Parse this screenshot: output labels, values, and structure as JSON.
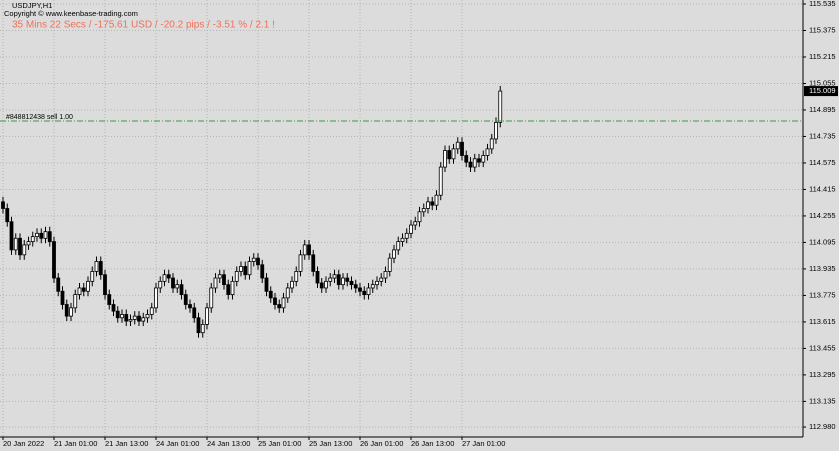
{
  "chart_data": {
    "type": "candlestick",
    "title": "USDJPY,H1",
    "subtitle": "Copyright © www.keenbase-trading.com",
    "annotation": "35 Mins 22 Secs / -175.61 USD / -20.2 pips / -3.51 % / 2.1 !",
    "order_line": {
      "label": "#848812438 sell 1.00",
      "price": 114.828,
      "color": "#3a9a3a"
    },
    "current_price": 115.009,
    "grid": true,
    "up_color": "#ffffff",
    "down_color": "#000000",
    "edge_color": "#000000",
    "categories": [
      "20 Jan 2022",
      null,
      null,
      null,
      null,
      null,
      null,
      null,
      null,
      null,
      null,
      null,
      "21 Jan 01:00",
      null,
      null,
      null,
      null,
      null,
      null,
      null,
      null,
      null,
      null,
      null,
      "21 Jan 13:00",
      null,
      null,
      null,
      null,
      null,
      null,
      null,
      null,
      null,
      null,
      null,
      "24 Jan 01:00",
      null,
      null,
      null,
      null,
      null,
      null,
      null,
      null,
      null,
      null,
      null,
      "24 Jan 13:00",
      null,
      null,
      null,
      null,
      null,
      null,
      null,
      null,
      null,
      null,
      null,
      "25 Jan 01:00",
      null,
      null,
      null,
      null,
      null,
      null,
      null,
      null,
      null,
      null,
      null,
      "25 Jan 13:00",
      null,
      null,
      null,
      null,
      null,
      null,
      null,
      null,
      null,
      null,
      null,
      "26 Jan 01:00",
      null,
      null,
      null,
      null,
      null,
      null,
      null,
      null,
      null,
      null,
      null,
      "26 Jan 13:00",
      null,
      null,
      null,
      null,
      null,
      null,
      null,
      null,
      null,
      null,
      null,
      "27 Jan 01:00",
      null,
      null,
      null,
      null,
      null,
      null,
      null,
      null,
      null
    ],
    "open": [
      114.34,
      114.3,
      114.22,
      114.05,
      114.12,
      114.02,
      114.08,
      114.1,
      114.13,
      114.15,
      114.12,
      114.16,
      114.1,
      113.88,
      113.8,
      113.72,
      113.65,
      113.7,
      113.78,
      113.82,
      113.8,
      113.86,
      113.92,
      113.98,
      113.9,
      113.78,
      113.72,
      113.68,
      113.64,
      113.66,
      113.62,
      113.63,
      113.65,
      113.62,
      113.64,
      113.66,
      113.7,
      113.82,
      113.86,
      113.9,
      113.88,
      113.82,
      113.84,
      113.78,
      113.72,
      113.7,
      113.64,
      113.55,
      113.6,
      113.7,
      113.82,
      113.88,
      113.9,
      113.84,
      113.78,
      113.86,
      113.92,
      113.95,
      113.9,
      113.98,
      114.0,
      113.96,
      113.88,
      113.8,
      113.76,
      113.72,
      113.7,
      113.76,
      113.82,
      113.86,
      113.92,
      114.02,
      114.08,
      114.02,
      113.92,
      113.85,
      113.82,
      113.86,
      113.88,
      113.9,
      113.84,
      113.88,
      113.86,
      113.84,
      113.82,
      113.8,
      113.78,
      113.82,
      113.84,
      113.86,
      113.88,
      113.92,
      114.0,
      114.05,
      114.1,
      114.12,
      114.15,
      114.2,
      114.22,
      114.28,
      114.3,
      114.34,
      114.32,
      114.38,
      114.55,
      114.65,
      114.6,
      114.66,
      114.7,
      114.62,
      114.58,
      114.55,
      114.6,
      114.58,
      114.62,
      114.66,
      114.72,
      114.82
    ],
    "high": [
      114.37,
      114.33,
      114.25,
      114.15,
      114.15,
      114.11,
      114.13,
      114.16,
      114.18,
      114.18,
      114.19,
      114.19,
      114.13,
      113.91,
      113.83,
      113.75,
      113.73,
      113.81,
      113.85,
      113.85,
      113.89,
      113.95,
      114.01,
      114.01,
      113.93,
      113.81,
      113.75,
      113.71,
      113.69,
      113.69,
      113.66,
      113.68,
      113.68,
      113.67,
      113.69,
      113.73,
      113.85,
      113.89,
      113.93,
      113.93,
      113.91,
      113.87,
      113.87,
      113.81,
      113.75,
      113.73,
      113.67,
      113.63,
      113.73,
      113.85,
      113.91,
      113.93,
      113.93,
      113.87,
      113.89,
      113.95,
      113.98,
      113.98,
      114.01,
      114.03,
      114.03,
      113.99,
      113.91,
      113.83,
      113.79,
      113.75,
      113.79,
      113.85,
      113.89,
      113.95,
      114.05,
      114.11,
      114.11,
      114.05,
      113.95,
      113.88,
      113.89,
      113.91,
      113.93,
      113.93,
      113.91,
      113.91,
      113.89,
      113.87,
      113.85,
      113.83,
      113.85,
      113.87,
      113.89,
      113.91,
      113.95,
      114.03,
      114.08,
      114.13,
      114.15,
      114.18,
      114.23,
      114.25,
      114.31,
      114.33,
      114.37,
      114.37,
      114.41,
      114.58,
      114.68,
      114.68,
      114.69,
      114.73,
      114.73,
      114.65,
      114.61,
      114.63,
      114.63,
      114.65,
      114.69,
      114.75,
      114.85,
      115.04
    ],
    "low": [
      114.27,
      114.19,
      114.02,
      114.02,
      113.99,
      113.99,
      114.05,
      114.07,
      114.1,
      114.09,
      114.09,
      114.07,
      113.85,
      113.77,
      113.69,
      113.62,
      113.62,
      113.67,
      113.75,
      113.77,
      113.77,
      113.83,
      113.89,
      113.87,
      113.75,
      113.69,
      113.65,
      113.61,
      113.61,
      113.59,
      113.59,
      113.6,
      113.59,
      113.59,
      113.61,
      113.63,
      113.67,
      113.79,
      113.83,
      113.85,
      113.79,
      113.79,
      113.75,
      113.69,
      113.67,
      113.61,
      113.52,
      113.52,
      113.57,
      113.67,
      113.79,
      113.85,
      113.81,
      113.75,
      113.75,
      113.83,
      113.89,
      113.87,
      113.87,
      113.95,
      113.93,
      113.85,
      113.77,
      113.73,
      113.69,
      113.67,
      113.67,
      113.73,
      113.79,
      113.83,
      113.89,
      113.99,
      113.99,
      113.89,
      113.82,
      113.79,
      113.79,
      113.83,
      113.85,
      113.81,
      113.81,
      113.83,
      113.81,
      113.79,
      113.77,
      113.75,
      113.75,
      113.79,
      113.81,
      113.83,
      113.85,
      113.89,
      113.97,
      114.02,
      114.07,
      114.09,
      114.12,
      114.17,
      114.19,
      114.25,
      114.27,
      114.29,
      114.29,
      114.35,
      114.52,
      114.57,
      114.57,
      114.63,
      114.59,
      114.55,
      114.52,
      114.52,
      114.55,
      114.55,
      114.59,
      114.63,
      114.69,
      114.79
    ],
    "close": [
      114.3,
      114.22,
      114.05,
      114.12,
      114.02,
      114.08,
      114.1,
      114.13,
      114.15,
      114.12,
      114.16,
      114.1,
      113.88,
      113.8,
      113.72,
      113.65,
      113.7,
      113.78,
      113.82,
      113.8,
      113.86,
      113.92,
      113.98,
      113.9,
      113.78,
      113.72,
      113.68,
      113.64,
      113.66,
      113.62,
      113.63,
      113.65,
      113.62,
      113.64,
      113.66,
      113.7,
      113.82,
      113.86,
      113.9,
      113.88,
      113.82,
      113.84,
      113.78,
      113.72,
      113.7,
      113.64,
      113.55,
      113.6,
      113.7,
      113.82,
      113.88,
      113.9,
      113.84,
      113.78,
      113.86,
      113.92,
      113.95,
      113.9,
      113.98,
      114.0,
      113.96,
      113.88,
      113.8,
      113.76,
      113.72,
      113.7,
      113.76,
      113.82,
      113.86,
      113.92,
      114.02,
      114.08,
      114.02,
      113.92,
      113.85,
      113.82,
      113.86,
      113.88,
      113.9,
      113.84,
      113.88,
      113.86,
      113.84,
      113.82,
      113.8,
      113.78,
      113.82,
      113.84,
      113.86,
      113.88,
      113.92,
      114.0,
      114.05,
      114.1,
      114.12,
      114.15,
      114.2,
      114.22,
      114.28,
      114.3,
      114.34,
      114.32,
      114.38,
      114.55,
      114.65,
      114.6,
      114.66,
      114.7,
      114.62,
      114.58,
      114.55,
      114.6,
      114.58,
      114.62,
      114.66,
      114.72,
      114.82,
      115.009
    ],
    "ylim": [
      112.92,
      115.559
    ],
    "yticks": [
      115.535,
      115.375,
      115.215,
      115.055,
      114.895,
      114.735,
      114.575,
      114.415,
      114.255,
      114.095,
      113.935,
      113.775,
      113.615,
      113.455,
      113.295,
      113.135,
      {
        "value": 112.98,
        "label": "112.980"
      }
    ]
  }
}
